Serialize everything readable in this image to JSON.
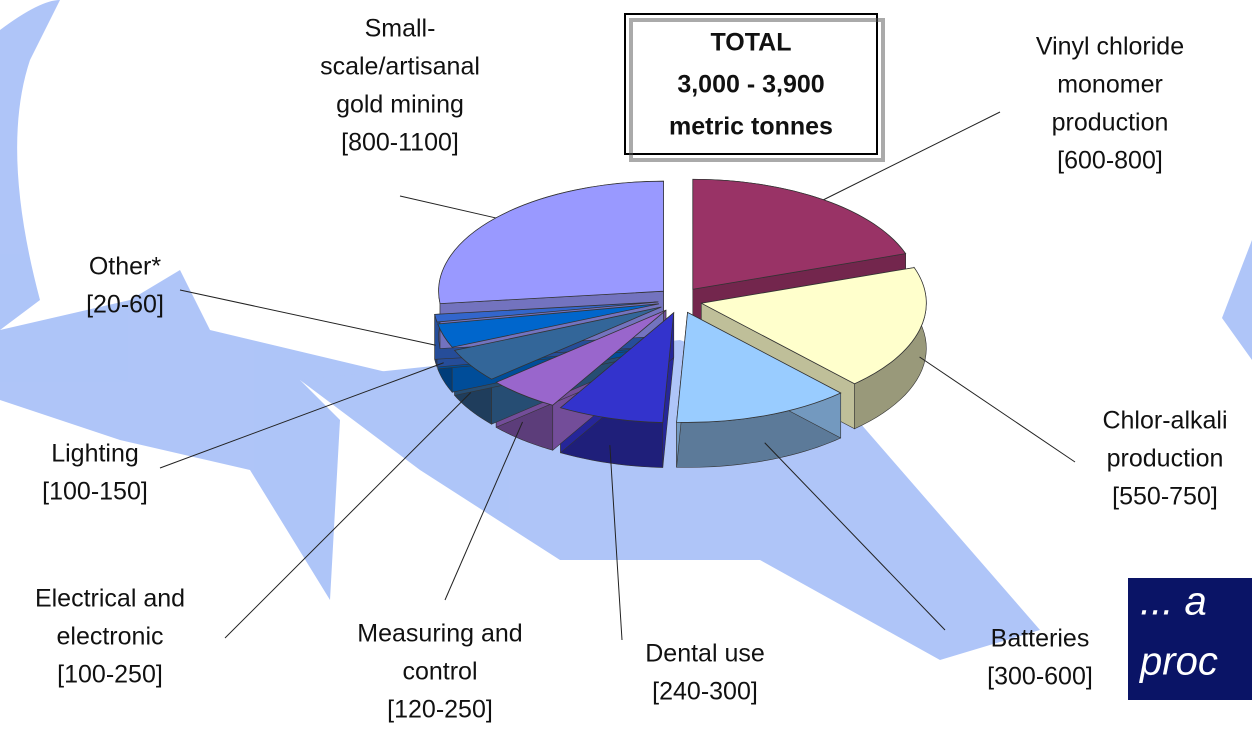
{
  "chart_data": {
    "type": "pie",
    "total_box": [
      "TOTAL",
      "3,000 - 3,900",
      "metric tonnes"
    ],
    "categories": [
      [
        "Vinyl chloride",
        "monomer",
        "production"
      ],
      [
        "Chlor-alkali",
        "production"
      ],
      [
        "Batteries"
      ],
      [
        "Dental use"
      ],
      [
        "Measuring and",
        "control"
      ],
      [
        "Electrical and",
        "electronic"
      ],
      [
        "Lighting"
      ],
      [
        "Other*"
      ],
      [
        "Small-",
        "scale/artisanal",
        "gold mining"
      ]
    ],
    "low": [
      600,
      550,
      300,
      240,
      120,
      100,
      100,
      20,
      800
    ],
    "high": [
      800,
      750,
      600,
      300,
      250,
      250,
      150,
      60,
      1100
    ],
    "value_labels": [
      "[600-800]",
      "[550-750]",
      "[300-600]",
      "[240-300]",
      "[120-250]",
      "[100-250]",
      "[100-150]",
      "[20-60]",
      "[800-1100]"
    ],
    "colors": [
      "#993366",
      "#ffffcc",
      "#99ccff",
      "#3333cc",
      "#9966cc",
      "#336699",
      "#0066cc",
      "#3366cc",
      "#9999ff"
    ],
    "overlay_text": [
      "... a",
      "proc"
    ]
  }
}
